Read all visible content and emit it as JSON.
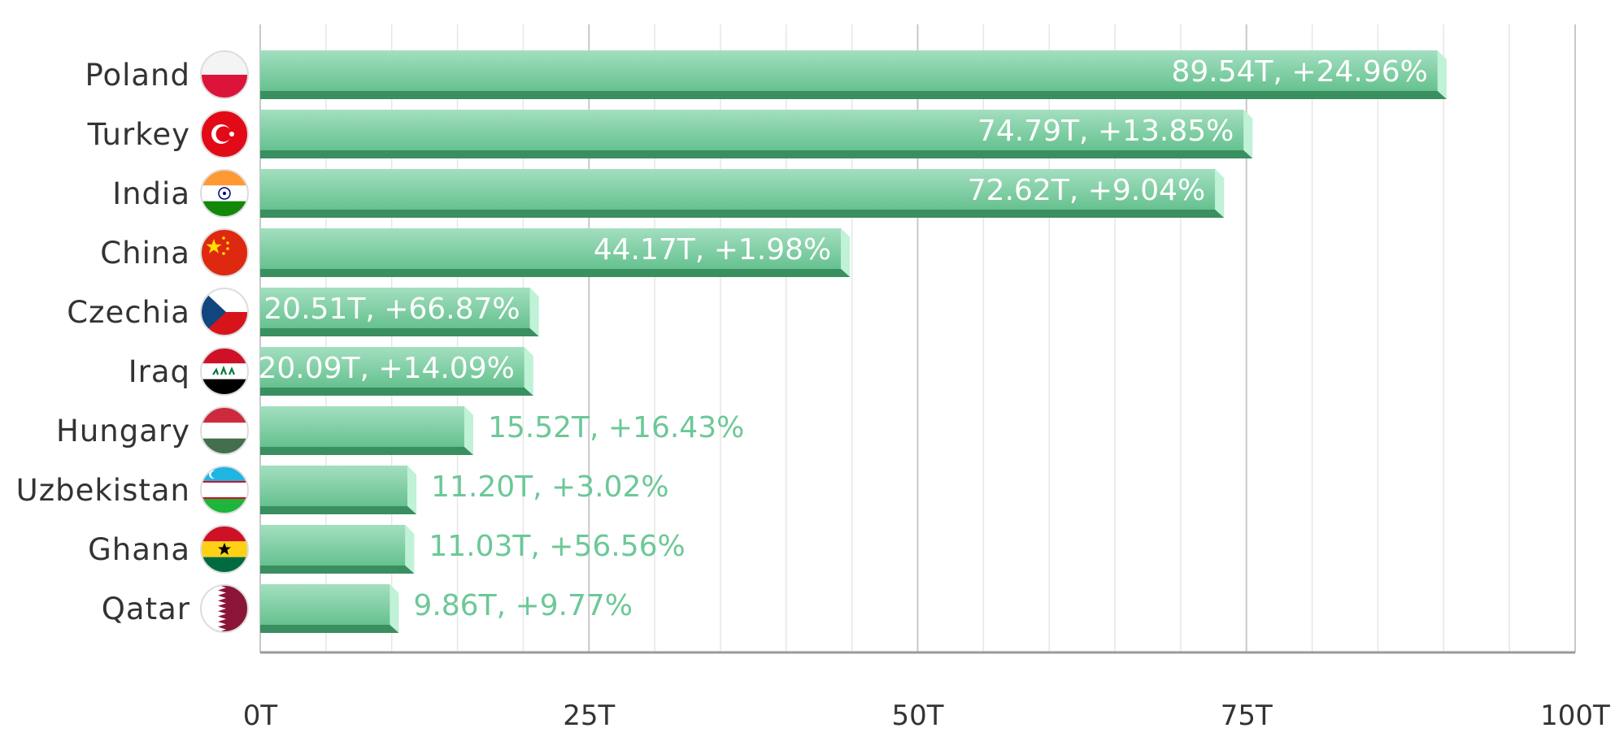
{
  "colors": {
    "bar_top": "#9edcbc",
    "bar_mid": "#6cc897",
    "bar_bottom_edge": "#3a8f60",
    "bar_cap": "#bff2d6",
    "label_outside": "#6cc897",
    "grid_major": "#c8c8c8",
    "grid_minor": "#e6e6e6",
    "axis": "#999999"
  },
  "chart_data": {
    "type": "bar",
    "orientation": "horizontal",
    "categories": [
      "Poland",
      "Turkey",
      "India",
      "China",
      "Czechia",
      "Iraq",
      "Hungary",
      "Uzbekistan",
      "Ghana",
      "Qatar"
    ],
    "values": [
      89.54,
      74.79,
      72.62,
      44.17,
      20.51,
      20.09,
      15.52,
      11.2,
      11.03,
      9.86
    ],
    "labels": [
      "89.54T, +24.96%",
      "74.79T, +13.85%",
      "72.62T, +9.04%",
      "44.17T, +1.98%",
      "20.51T, +66.87%",
      "20.09T, +14.09%",
      "15.52T, +16.43%",
      "11.20T, +3.02%",
      "11.03T, +56.56%",
      "9.86T, +9.77%"
    ],
    "flags": [
      "poland-flag-icon",
      "turkey-flag-icon",
      "india-flag-icon",
      "china-flag-icon",
      "czechia-flag-icon",
      "iraq-flag-icon",
      "hungary-flag-icon",
      "uzbekistan-flag-icon",
      "ghana-flag-icon",
      "qatar-flag-icon"
    ],
    "x_ticks": [
      "0T",
      "25T",
      "50T",
      "75T",
      "100T"
    ],
    "xlim": [
      0,
      100
    ],
    "grid": true,
    "title": "",
    "xlabel": "",
    "ylabel": ""
  }
}
